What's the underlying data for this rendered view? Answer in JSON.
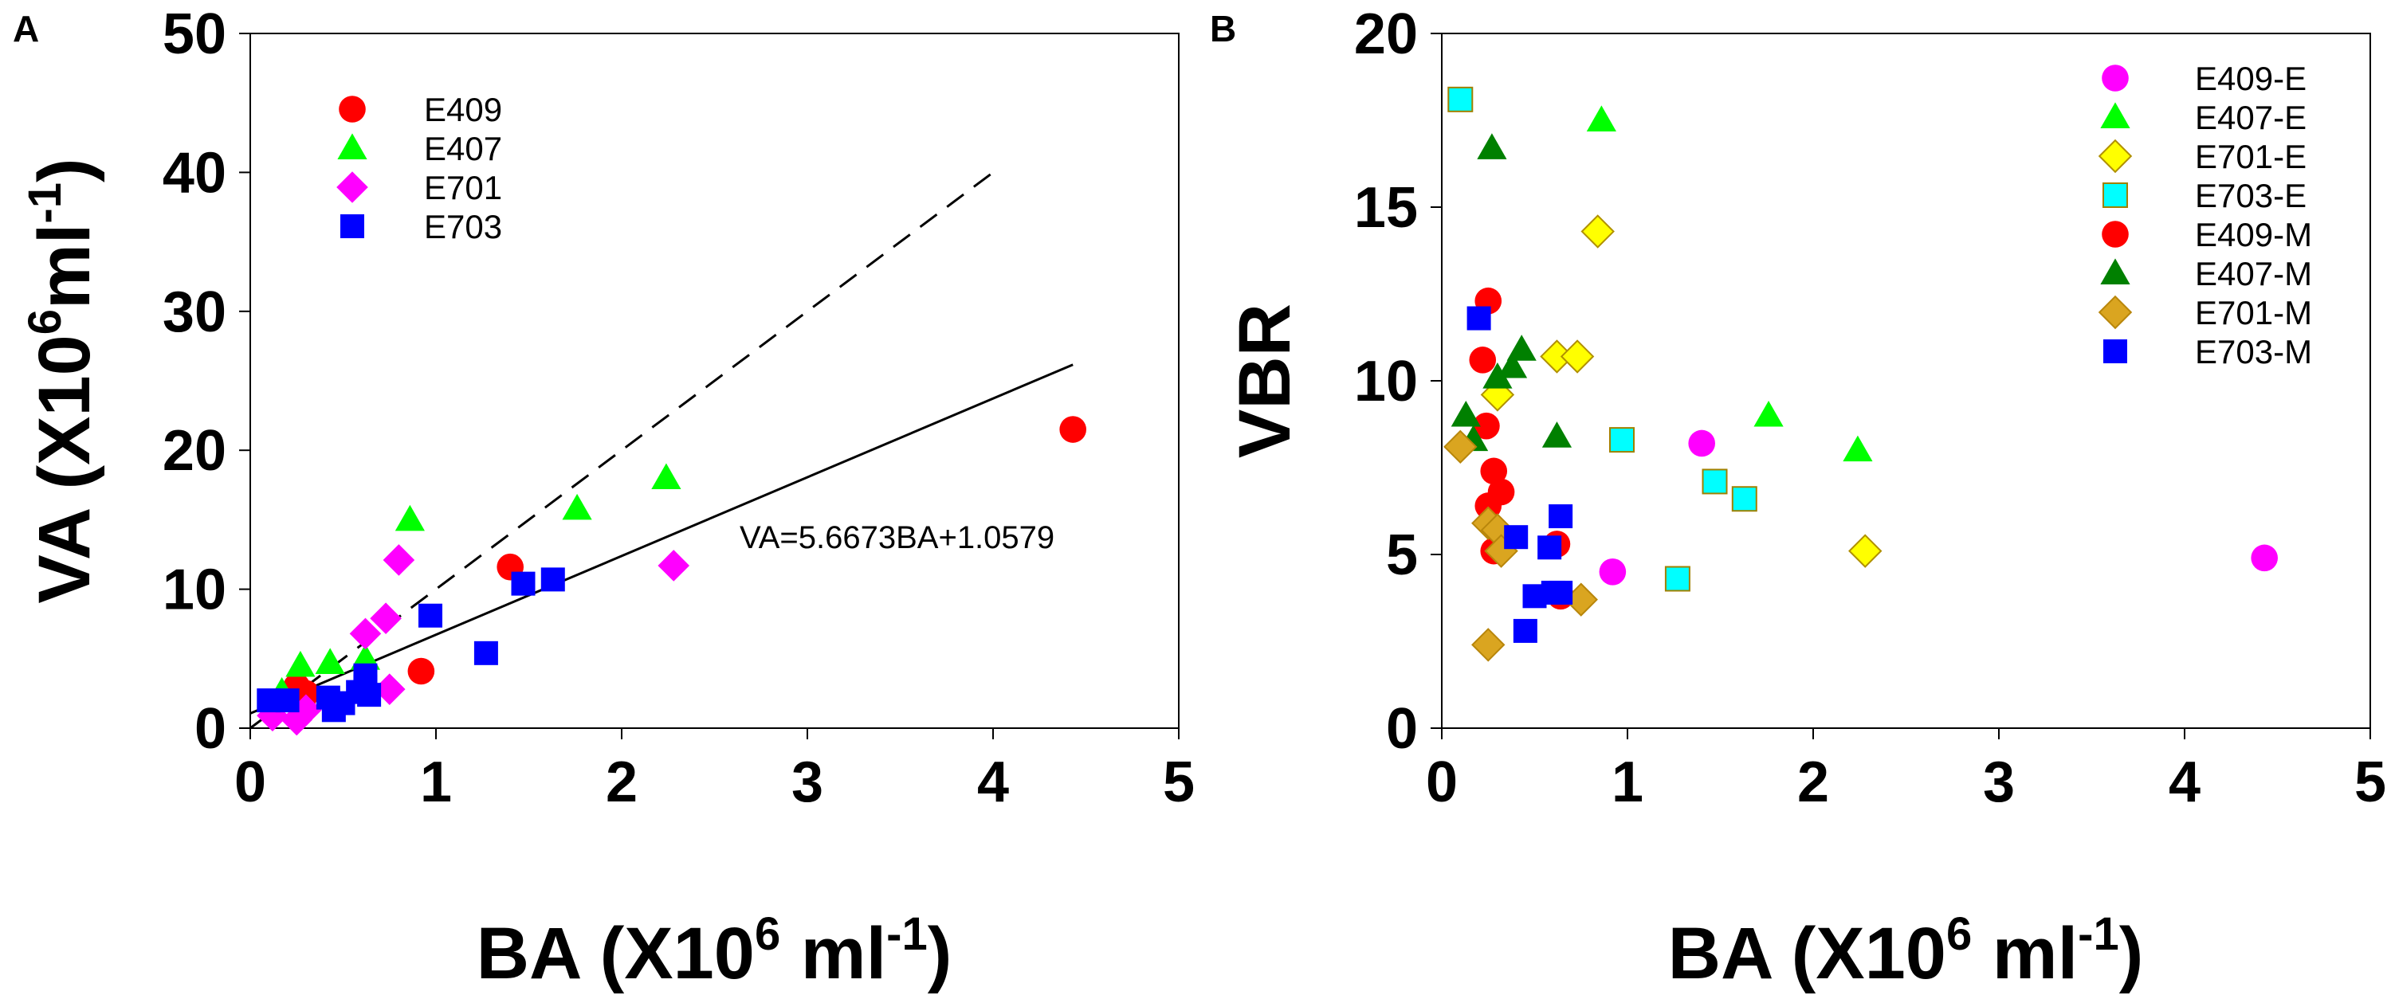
{
  "chart_data": [
    {
      "panel_label": "A",
      "type": "scatter",
      "xlabel": "BA (X10",
      "xlabel_sup": "6",
      "xlabel_mid": " ml",
      "xlabel_sup2": "-1",
      "xlabel_end": ")",
      "ylabel": "VA (X10",
      "ylabel_sup": "6",
      "ylabel_mid": "ml",
      "ylabel_sup2": "-1",
      "ylabel_end": ")",
      "xlim": [
        0,
        5
      ],
      "ylim": [
        0,
        50
      ],
      "xticks": [
        "0",
        "1",
        "2",
        "3",
        "4",
        "5"
      ],
      "yticks": [
        "0",
        "10",
        "20",
        "30",
        "40",
        "50"
      ],
      "legend_position": "top-left",
      "series": [
        {
          "name": "E409",
          "marker": "circle",
          "color": "#ff0000",
          "points": [
            [
              0.25,
              3.0
            ],
            [
              0.3,
              2.5
            ],
            [
              0.92,
              4.1
            ],
            [
              1.4,
              11.6
            ],
            [
              4.43,
              21.5
            ],
            [
              0.28,
              1.8
            ]
          ]
        },
        {
          "name": "E407",
          "marker": "triangle",
          "color": "#00ff00",
          "points": [
            [
              0.27,
              4.5
            ],
            [
              0.43,
              4.7
            ],
            [
              0.62,
              5.0
            ],
            [
              0.86,
              15.0
            ],
            [
              1.76,
              15.8
            ],
            [
              2.24,
              18.0
            ],
            [
              0.17,
              2.6
            ]
          ]
        },
        {
          "name": "E701",
          "marker": "diamond",
          "color": "#ff00ff",
          "points": [
            [
              0.12,
              0.9
            ],
            [
              0.25,
              0.6
            ],
            [
              0.3,
              1.3
            ],
            [
              0.62,
              6.8
            ],
            [
              0.73,
              7.9
            ],
            [
              0.8,
              12.1
            ],
            [
              0.75,
              2.8
            ],
            [
              2.28,
              11.7
            ]
          ]
        },
        {
          "name": "E703",
          "marker": "square",
          "color": "#0000ff",
          "points": [
            [
              0.1,
              2.0
            ],
            [
              0.2,
              2.0
            ],
            [
              0.45,
              1.3
            ],
            [
              0.5,
              1.8
            ],
            [
              0.42,
              2.2
            ],
            [
              0.58,
              2.6
            ],
            [
              0.62,
              3.0
            ],
            [
              0.62,
              3.8
            ],
            [
              0.64,
              2.4
            ],
            [
              0.97,
              8.1
            ],
            [
              1.27,
              5.4
            ],
            [
              1.47,
              10.4
            ],
            [
              1.63,
              10.7
            ]
          ]
        }
      ],
      "lines": [
        {
          "name": "regression",
          "style": "solid",
          "slope": 5.6673,
          "intercept": 1.0579,
          "x_range": [
            0,
            4.43
          ]
        },
        {
          "name": "reference",
          "style": "dashed",
          "slope": 10.0,
          "intercept": 0.0,
          "x_range": [
            0,
            4.0
          ]
        }
      ],
      "annotation": "VA=5.6673BA+1.0579"
    },
    {
      "panel_label": "B",
      "type": "scatter",
      "xlabel": "BA (X10",
      "xlabel_sup": "6",
      "xlabel_mid": " ml",
      "xlabel_sup2": "-1",
      "xlabel_end": ")",
      "ylabel": "VBR",
      "xlim": [
        0,
        5
      ],
      "ylim": [
        0,
        20
      ],
      "xticks": [
        "0",
        "1",
        "2",
        "3",
        "4",
        "5"
      ],
      "yticks": [
        "0",
        "5",
        "10",
        "15",
        "20"
      ],
      "legend_position": "top-right",
      "series": [
        {
          "name": "E409-E",
          "marker": "circle",
          "color": "#ff00ff",
          "points": [
            [
              0.92,
              4.5
            ],
            [
              1.4,
              8.2
            ],
            [
              4.43,
              4.9
            ]
          ]
        },
        {
          "name": "E407-E",
          "marker": "triangle",
          "color": "#00ff00",
          "points": [
            [
              0.86,
              17.5
            ],
            [
              1.76,
              9.0
            ],
            [
              2.24,
              8.0
            ]
          ]
        },
        {
          "name": "E701-E",
          "marker": "diamond",
          "color": "#ffff00",
          "points": [
            [
              0.3,
              9.6
            ],
            [
              0.62,
              10.7
            ],
            [
              0.73,
              10.7
            ],
            [
              0.84,
              14.3
            ],
            [
              2.28,
              5.1
            ]
          ]
        },
        {
          "name": "E703-E",
          "marker": "square",
          "color": "#00ffff",
          "points": [
            [
              0.1,
              18.1
            ],
            [
              0.97,
              8.3
            ],
            [
              1.27,
              4.3
            ],
            [
              1.47,
              7.1
            ],
            [
              1.63,
              6.6
            ]
          ]
        },
        {
          "name": "E409-M",
          "marker": "circle",
          "color": "#ff0000",
          "points": [
            [
              0.22,
              10.6
            ],
            [
              0.25,
              12.3
            ],
            [
              0.24,
              8.7
            ],
            [
              0.28,
              7.4
            ],
            [
              0.32,
              6.8
            ],
            [
              0.25,
              6.4
            ],
            [
              0.28,
              5.1
            ],
            [
              0.62,
              5.3
            ],
            [
              0.64,
              3.8
            ]
          ]
        },
        {
          "name": "E407-M",
          "marker": "triangle",
          "color": "#008000",
          "points": [
            [
              0.27,
              16.7
            ],
            [
              0.13,
              9.0
            ],
            [
              0.17,
              8.3
            ],
            [
              0.3,
              10.1
            ],
            [
              0.38,
              10.4
            ],
            [
              0.43,
              10.9
            ],
            [
              0.62,
              8.4
            ]
          ]
        },
        {
          "name": "E701-M",
          "marker": "diamond",
          "color": "#daa520",
          "points": [
            [
              0.1,
              8.1
            ],
            [
              0.25,
              5.9
            ],
            [
              0.3,
              5.7
            ],
            [
              0.32,
              5.1
            ],
            [
              0.25,
              2.4
            ],
            [
              0.75,
              3.7
            ]
          ]
        },
        {
          "name": "E703-M",
          "marker": "square",
          "color": "#0000ff",
          "points": [
            [
              0.2,
              11.8
            ],
            [
              0.4,
              5.5
            ],
            [
              0.58,
              5.2
            ],
            [
              0.64,
              6.1
            ],
            [
              0.45,
              2.8
            ],
            [
              0.5,
              3.8
            ],
            [
              0.6,
              3.9
            ],
            [
              0.64,
              3.9
            ]
          ]
        }
      ]
    }
  ]
}
